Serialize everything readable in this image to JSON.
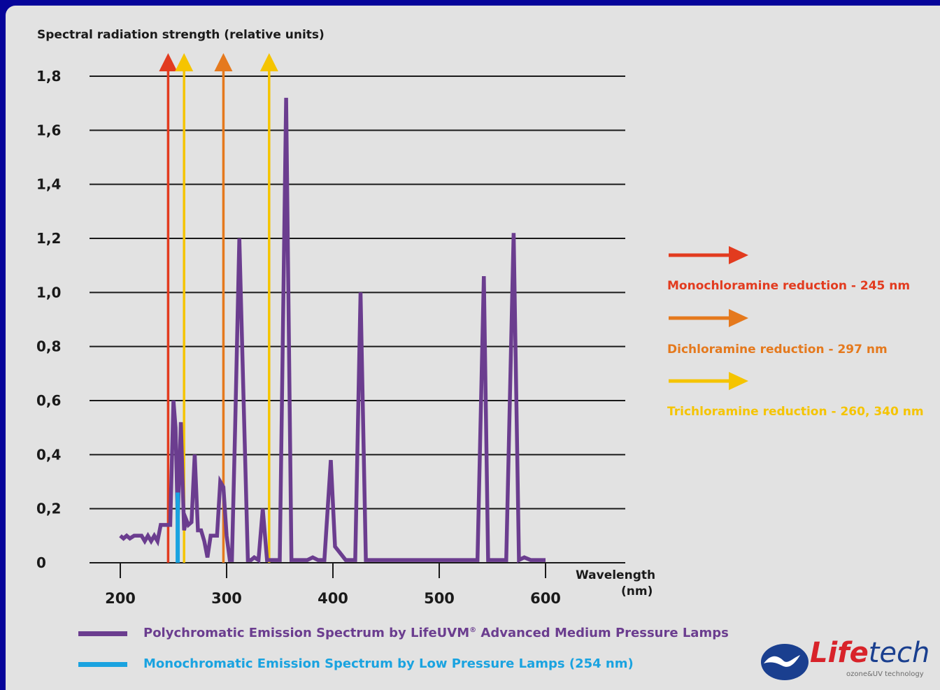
{
  "chart_data": {
    "type": "line",
    "ylabel": "Spectral radiation strength (relative units)",
    "xlabel_line1": "Wavelength",
    "xlabel_line2": "(nm)",
    "y_ticks": [
      "0",
      "0,2",
      "0,4",
      "0,6",
      "0,8",
      "1,0",
      "1,2",
      "1,4",
      "1,6",
      "1,8"
    ],
    "y_tick_values": [
      0,
      0.2,
      0.4,
      0.6,
      0.8,
      1.0,
      1.2,
      1.4,
      1.6,
      1.8
    ],
    "x_ticks": [
      "200",
      "300",
      "400",
      "500",
      "600"
    ],
    "x_tick_values": [
      200,
      300,
      400,
      500,
      600
    ],
    "xlim": [
      162,
      665
    ],
    "ylim": [
      0,
      1.8
    ],
    "grid": true,
    "series": [
      {
        "name": "Polychromatic Emission Spectrum by LifeUVM® Advanced Medium Pressure Lamps",
        "color": "#6b3d8f",
        "x": [
          200,
          203,
          206,
          209,
          213,
          217,
          220,
          223,
          226,
          229,
          232,
          235,
          238,
          241,
          244,
          247,
          250,
          252,
          254,
          257,
          260,
          262,
          264,
          267,
          270,
          273,
          276,
          279,
          282,
          285,
          288,
          291,
          294,
          297,
          300,
          303,
          305,
          308,
          312,
          316,
          320,
          323,
          326,
          330,
          334,
          338,
          341,
          344,
          350,
          356,
          361,
          366,
          371,
          376,
          381,
          386,
          392,
          398,
          402,
          406,
          412,
          417,
          421,
          426,
          431,
          436,
          441,
          446,
          455,
          465,
          475,
          485,
          495,
          505,
          515,
          525,
          536,
          542,
          546,
          550,
          556,
          563,
          570,
          575,
          580,
          586,
          591,
          600
        ],
        "y": [
          0.1,
          0.09,
          0.1,
          0.09,
          0.1,
          0.1,
          0.1,
          0.08,
          0.1,
          0.08,
          0.1,
          0.08,
          0.14,
          0.14,
          0.14,
          0.14,
          0.6,
          0.5,
          0.16,
          0.52,
          0.12,
          0.16,
          0.14,
          0.15,
          0.4,
          0.12,
          0.12,
          0.08,
          0.02,
          0.1,
          0.1,
          0.1,
          0.3,
          0.28,
          0.1,
          0.01,
          0.01,
          0.5,
          1.2,
          0.6,
          0.01,
          0.01,
          0.02,
          0.01,
          0.2,
          0.01,
          0.01,
          0.01,
          0.01,
          1.72,
          0.01,
          0.01,
          0.01,
          0.01,
          0.02,
          0.01,
          0.01,
          0.38,
          0.06,
          0.04,
          0.01,
          0.01,
          0.01,
          1.0,
          0.01,
          0.01,
          0.01,
          0.01,
          0.01,
          0.01,
          0.01,
          0.01,
          0.01,
          0.01,
          0.01,
          0.01,
          0.01,
          1.06,
          0.01,
          0.01,
          0.01,
          0.01,
          1.22,
          0.01,
          0.02,
          0.01,
          0.01,
          0.01
        ]
      },
      {
        "name": "Monochromatic Emission Spectrum by Low Pressure Lamps (254 nm)",
        "color": "#1aa3e0",
        "x": [
          254
        ],
        "y": [
          0.26
        ]
      }
    ],
    "markers": [
      {
        "wavelength": 245,
        "color": "#e23b1f"
      },
      {
        "wavelength": 260,
        "color": "#f5c400"
      },
      {
        "wavelength": 297,
        "color": "#e5791d"
      },
      {
        "wavelength": 340,
        "color": "#f5c400"
      }
    ]
  },
  "arrow_legend": [
    {
      "label": "Monochloramine reduction - 245 nm",
      "color": "#e23b1f"
    },
    {
      "label": "Dichloramine reduction - 297 nm",
      "color": "#e5791d"
    },
    {
      "label": "Trichloramine reduction - 260, 340 nm",
      "color": "#f5c400"
    }
  ],
  "legend": {
    "poly_label": "Polychromatic Emission Spectrum by LifeUVM",
    "poly_reg": "®",
    "poly_label_rest": " Advanced Medium Pressure Lamps",
    "mono_label": "Monochromatic Emission Spectrum by Low Pressure Lamps (254 nm)",
    "text_color": "#6b3d8f",
    "mono_text_color": "#1aa3e0"
  },
  "logo": {
    "word_life": "Life",
    "word_tech": "tech",
    "tagline": "ozone&UV technology"
  }
}
